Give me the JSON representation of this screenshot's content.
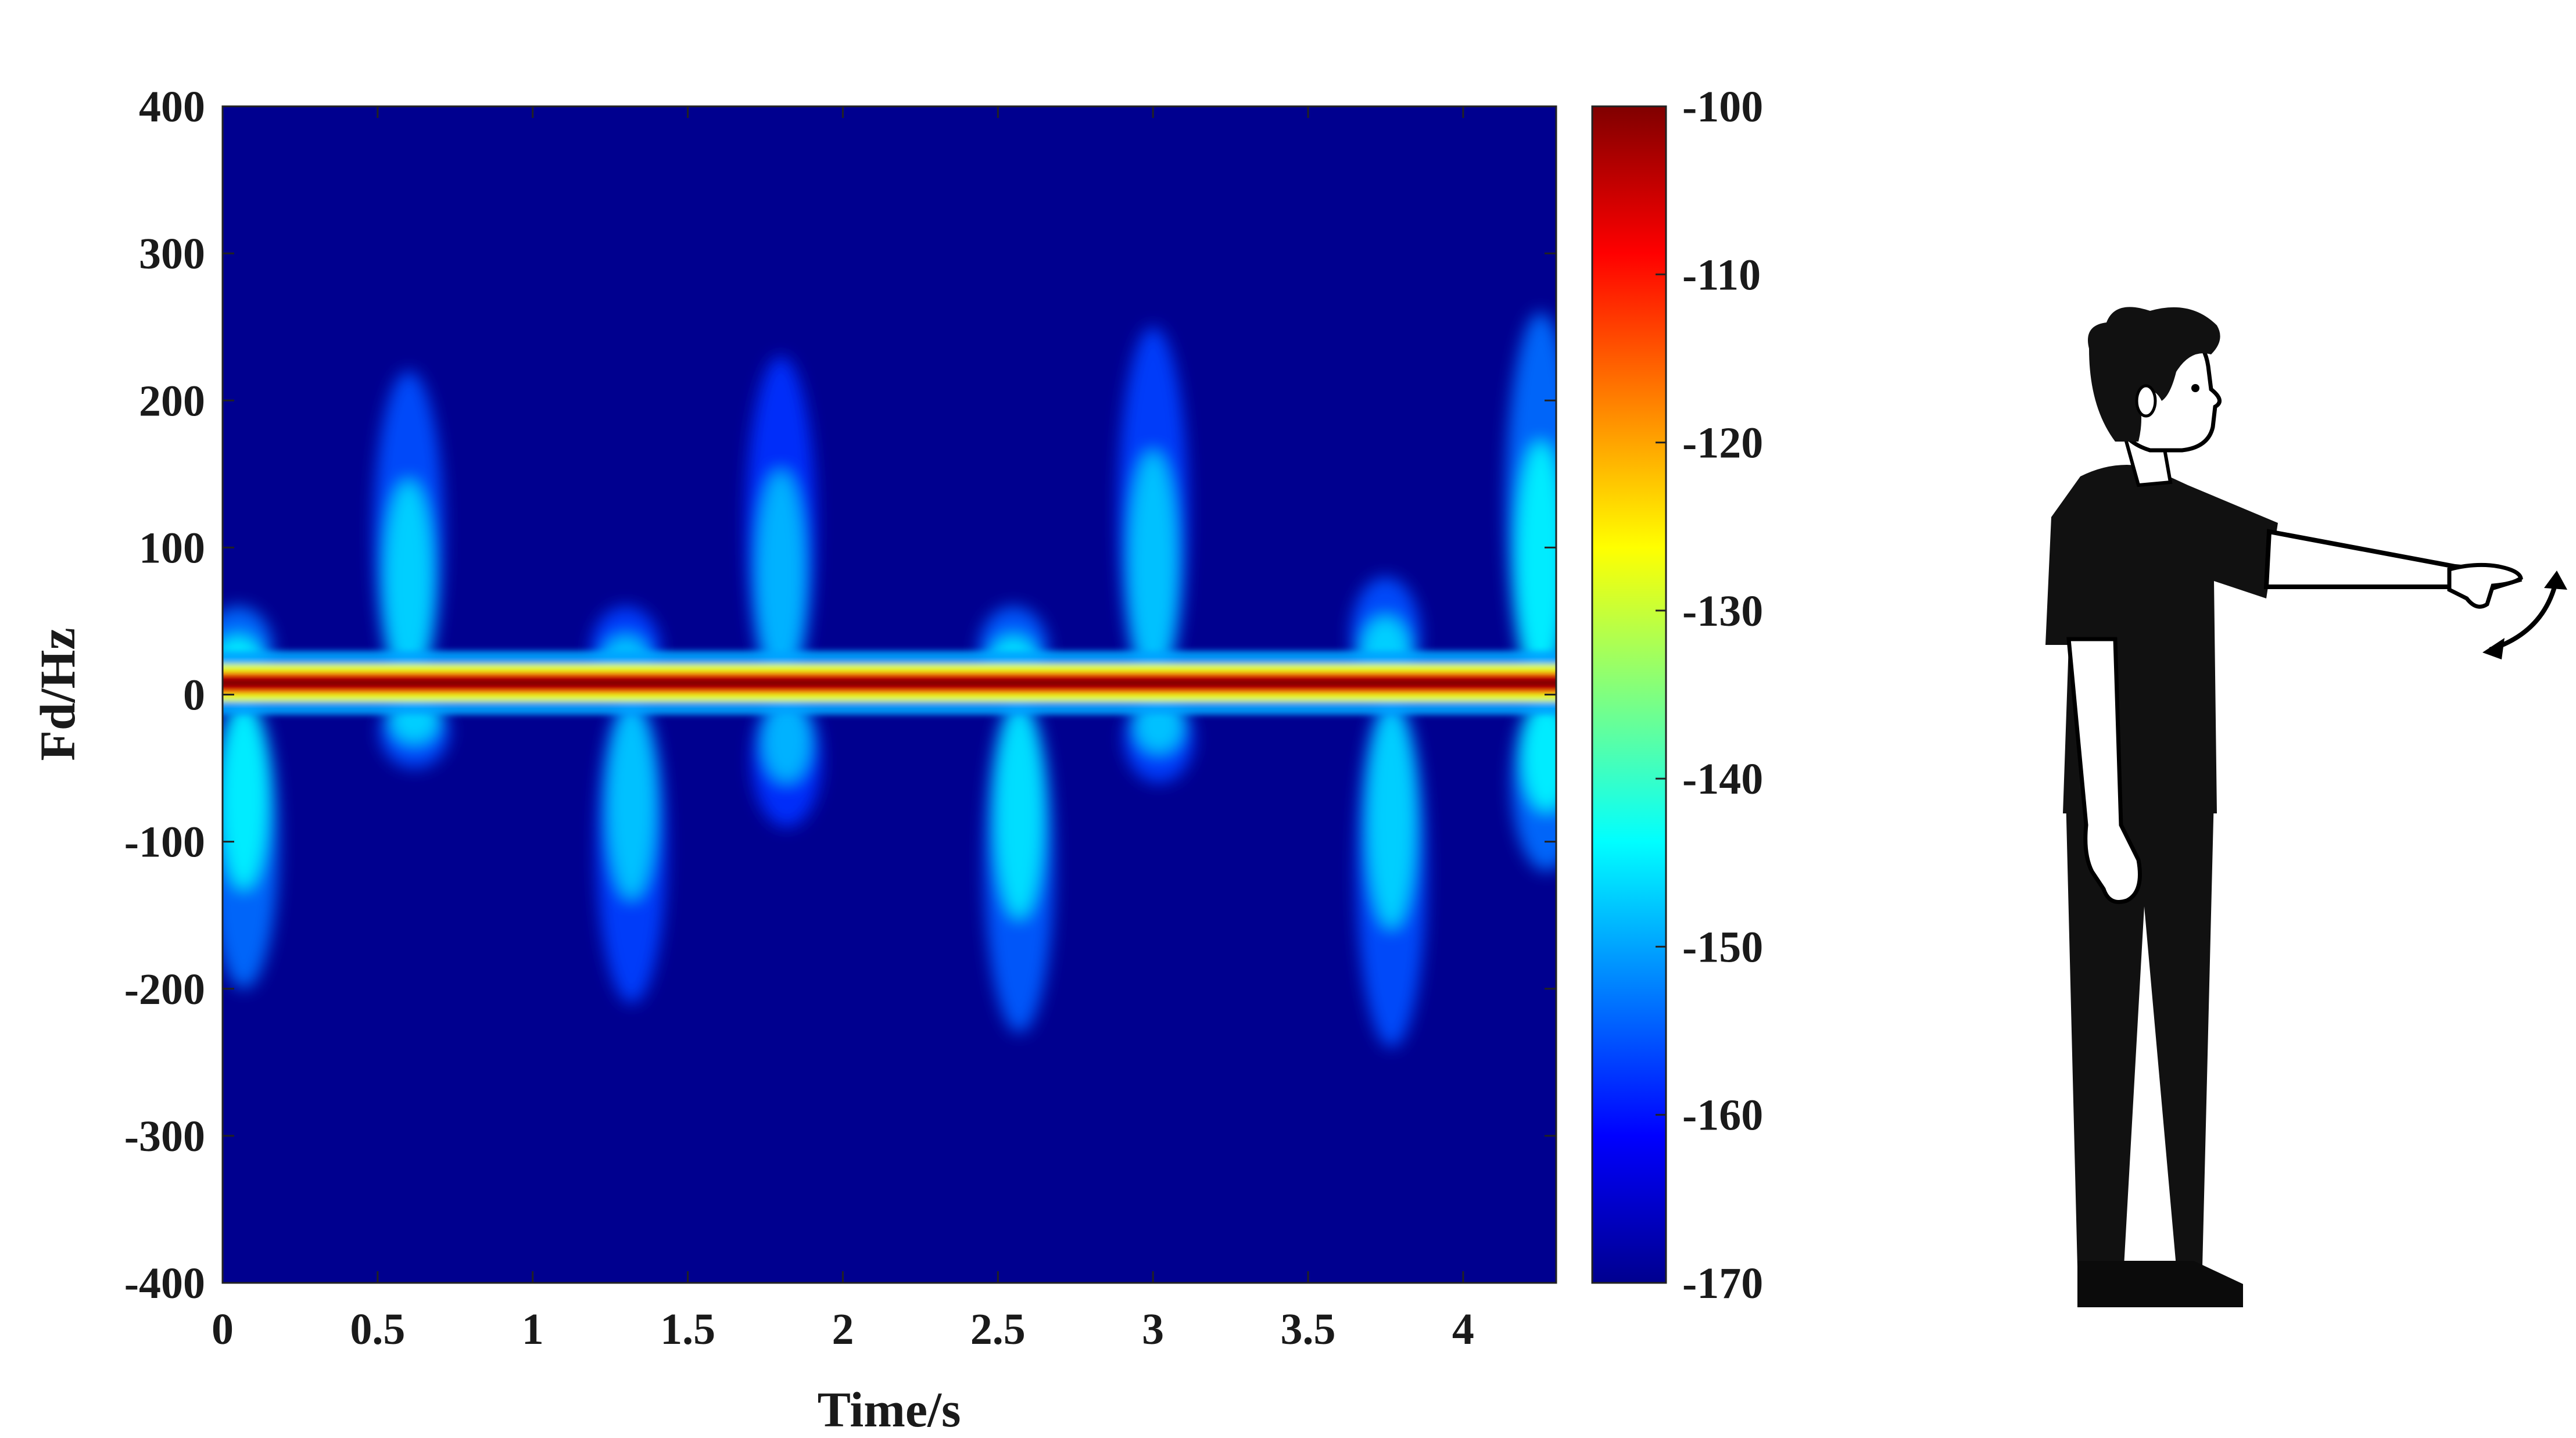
{
  "chart_data": {
    "type": "heatmap",
    "title": "",
    "xlabel": "Time/s",
    "ylabel": "Fd/Hz",
    "xlim": [
      0,
      4.3
    ],
    "ylim": [
      -400,
      400
    ],
    "x_ticks": [
      "0",
      "0.5",
      "1",
      "1.5",
      "2",
      "2.5",
      "3",
      "3.5",
      "4"
    ],
    "y_ticks": [
      "400",
      "300",
      "200",
      "100",
      "0",
      "-100",
      "-200",
      "-300",
      "-400"
    ],
    "colorbar": {
      "range": [
        -170,
        -100
      ],
      "ticks": [
        "-100",
        "-110",
        "-120",
        "-130",
        "-140",
        "-150",
        "-160",
        "-170"
      ],
      "colormap": "jet"
    },
    "background_level_db": -170,
    "carrier": {
      "center_hz": 8,
      "level_db": -100
    },
    "bursts": [
      {
        "t": 0.05,
        "pos_extent_hz": 60,
        "neg_extent_hz": 200,
        "level_db": -140
      },
      {
        "t": 0.6,
        "pos_extent_hz": 220,
        "neg_extent_hz": 50,
        "level_db": -142
      },
      {
        "t": 1.3,
        "pos_extent_hz": 60,
        "neg_extent_hz": 210,
        "level_db": -143
      },
      {
        "t": 1.8,
        "pos_extent_hz": 230,
        "neg_extent_hz": 90,
        "level_db": -144
      },
      {
        "t": 2.55,
        "pos_extent_hz": 60,
        "neg_extent_hz": 230,
        "level_db": -141
      },
      {
        "t": 3.0,
        "pos_extent_hz": 250,
        "neg_extent_hz": 60,
        "level_db": -143
      },
      {
        "t": 3.75,
        "pos_extent_hz": 80,
        "neg_extent_hz": 240,
        "level_db": -142
      },
      {
        "t": 4.25,
        "pos_extent_hz": 260,
        "neg_extent_hz": 120,
        "level_db": -140
      }
    ]
  },
  "illustration": {
    "subject": "person standing with right arm extended forward, hand waving up and down",
    "icon": "person-waving-hand-icon",
    "motion_icon": "curved-double-arrow-icon",
    "colors": {
      "figure": "#111111",
      "skin": "#ffffff",
      "outline": "#000000"
    }
  }
}
